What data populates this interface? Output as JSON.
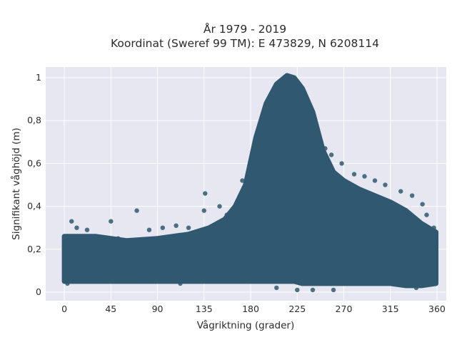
{
  "chart_data": {
    "type": "scatter",
    "title": "År 1979 - 2019",
    "subtitle": "Koordinat (Sweref 99 TM): E 473829, N 6208114",
    "xlabel": "Vågriktning (grader)",
    "ylabel": "Signifikant våghöjd (m)",
    "xlim": [
      -18,
      369
    ],
    "ylim": [
      -0.04,
      1.05
    ],
    "x_ticks": [
      0,
      45,
      90,
      135,
      180,
      225,
      270,
      315,
      360
    ],
    "y_ticks": [
      0,
      0.2,
      0.4,
      0.6,
      0.8,
      1
    ],
    "y_tick_labels": [
      "0",
      "0,2",
      "0,4",
      "0,6",
      "0,8",
      "1"
    ],
    "grid": true,
    "marker_color": "#305870",
    "plot_background": "#e6e7f0",
    "series": [
      {
        "envelope": [
          {
            "x": 0,
            "ymin": 0.05,
            "ymax": 0.26
          },
          {
            "x": 30,
            "ymin": 0.05,
            "ymax": 0.26
          },
          {
            "x": 60,
            "ymin": 0.05,
            "ymax": 0.24
          },
          {
            "x": 90,
            "ymin": 0.05,
            "ymax": 0.25
          },
          {
            "x": 120,
            "ymin": 0.05,
            "ymax": 0.27
          },
          {
            "x": 140,
            "ymin": 0.05,
            "ymax": 0.3
          },
          {
            "x": 155,
            "ymin": 0.05,
            "ymax": 0.34
          },
          {
            "x": 165,
            "ymin": 0.05,
            "ymax": 0.4
          },
          {
            "x": 175,
            "ymin": 0.05,
            "ymax": 0.5
          },
          {
            "x": 185,
            "ymin": 0.05,
            "ymax": 0.72
          },
          {
            "x": 195,
            "ymin": 0.05,
            "ymax": 0.88
          },
          {
            "x": 205,
            "ymin": 0.05,
            "ymax": 0.97
          },
          {
            "x": 215,
            "ymin": 0.05,
            "ymax": 1.01
          },
          {
            "x": 222,
            "ymin": 0.05,
            "ymax": 1.0
          },
          {
            "x": 230,
            "ymin": 0.04,
            "ymax": 0.95
          },
          {
            "x": 240,
            "ymin": 0.04,
            "ymax": 0.84
          },
          {
            "x": 250,
            "ymin": 0.04,
            "ymax": 0.66
          },
          {
            "x": 260,
            "ymin": 0.04,
            "ymax": 0.56
          },
          {
            "x": 270,
            "ymin": 0.04,
            "ymax": 0.52
          },
          {
            "x": 285,
            "ymin": 0.04,
            "ymax": 0.48
          },
          {
            "x": 300,
            "ymin": 0.04,
            "ymax": 0.45
          },
          {
            "x": 315,
            "ymin": 0.04,
            "ymax": 0.42
          },
          {
            "x": 330,
            "ymin": 0.03,
            "ymax": 0.38
          },
          {
            "x": 345,
            "ymin": 0.03,
            "ymax": 0.32
          },
          {
            "x": 359,
            "ymin": 0.04,
            "ymax": 0.28
          }
        ],
        "points": [
          [
            7,
            0.33
          ],
          [
            12,
            0.3
          ],
          [
            22,
            0.29
          ],
          [
            45,
            0.33
          ],
          [
            52,
            0.25
          ],
          [
            70,
            0.38
          ],
          [
            82,
            0.29
          ],
          [
            95,
            0.3
          ],
          [
            108,
            0.31
          ],
          [
            120,
            0.3
          ],
          [
            136,
            0.46
          ],
          [
            135,
            0.38
          ],
          [
            150,
            0.4
          ],
          [
            157,
            0.36
          ],
          [
            172,
            0.52
          ],
          [
            180,
            0.6
          ],
          [
            185,
            0.63
          ],
          [
            190,
            0.7
          ],
          [
            248,
            0.7
          ],
          [
            252,
            0.67
          ],
          [
            258,
            0.64
          ],
          [
            268,
            0.6
          ],
          [
            280,
            0.55
          ],
          [
            290,
            0.54
          ],
          [
            300,
            0.52
          ],
          [
            310,
            0.5
          ],
          [
            325,
            0.47
          ],
          [
            336,
            0.45
          ],
          [
            346,
            0.41
          ],
          [
            350,
            0.36
          ],
          [
            357,
            0.3
          ],
          [
            260,
            0.01
          ],
          [
            240,
            0.01
          ],
          [
            225,
            0.01
          ],
          [
            205,
            0.02
          ],
          [
            340,
            0.02
          ],
          [
            3,
            0.04
          ],
          [
            15,
            0.05
          ],
          [
            40,
            0.06
          ],
          [
            60,
            0.05
          ],
          [
            112,
            0.04
          ],
          [
            88,
            0.05
          ]
        ]
      }
    ]
  }
}
